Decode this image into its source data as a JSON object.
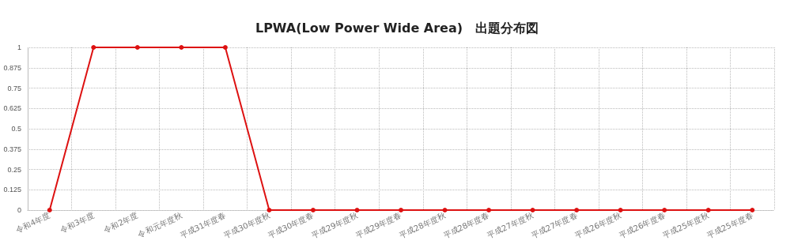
{
  "chart_data": {
    "type": "line",
    "title": "LPWA(Low Power Wide Area)　出題分布図",
    "categories": [
      "令和4年度",
      "令和3年度",
      "令和2年度",
      "令和元年度秋",
      "平成31年度春",
      "平成30年度秋",
      "平成30年度春",
      "平成29年度秋",
      "平成29年度春",
      "平成28年度秋",
      "平成28年度春",
      "平成27年度秋",
      "平成27年度春",
      "平成26年度秋",
      "平成26年度春",
      "平成25年度秋",
      "平成25年度春"
    ],
    "series": [
      {
        "color": "#dd1111",
        "values": [
          0,
          1,
          1,
          1,
          1,
          0,
          0,
          0,
          0,
          0,
          0,
          0,
          0,
          0,
          0,
          0,
          0
        ]
      }
    ],
    "ylim": [
      0,
      1
    ],
    "yticks": [
      0,
      0.125,
      0.25,
      0.375,
      0.5,
      0.625,
      0.75,
      0.875,
      1
    ],
    "grid": true,
    "marker": "circle",
    "line_style": "solid"
  }
}
